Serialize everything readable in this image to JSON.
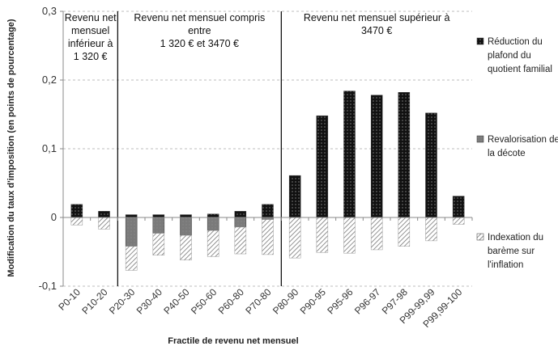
{
  "chart_data": {
    "type": "bar",
    "stacked": true,
    "categories": [
      "P0-10",
      "P10-20",
      "P20-30",
      "P30-40",
      "P40-50",
      "P50-60",
      "P60-80",
      "P70-80",
      "P80-90",
      "P90-95",
      "P95-96",
      "P96-97",
      "P97-98",
      "P99-99,99",
      "P99,99-100"
    ],
    "series": [
      {
        "name": "Réduction du plafond du quotient familial",
        "values": [
          0.019,
          0.009,
          0.004,
          0.004,
          0.004,
          0.005,
          0.009,
          0.019,
          0.061,
          0.148,
          0.184,
          0.178,
          0.182,
          0.152,
          0.031
        ],
        "color": "#111111",
        "pattern": "dots"
      },
      {
        "name": "Revalorisation de la décote",
        "values": [
          0,
          0,
          -0.042,
          -0.023,
          -0.026,
          -0.019,
          -0.014,
          -0.003,
          0,
          0,
          0,
          0,
          0,
          0,
          0
        ],
        "color": "#7a7a7a",
        "pattern": "solid"
      },
      {
        "name": "Indexation du barème sur l'inflation",
        "values": [
          -0.011,
          -0.017,
          -0.035,
          -0.032,
          -0.036,
          -0.038,
          -0.039,
          -0.051,
          -0.059,
          -0.051,
          -0.052,
          -0.047,
          -0.042,
          -0.034,
          -0.01
        ],
        "color": "#ffffff",
        "pattern": "hatch"
      }
    ],
    "ylim": [
      -0.1,
      0.3
    ],
    "yticks": [
      "-0,1",
      "0",
      "0,1",
      "0,2",
      "0,3"
    ],
    "ytick_values": [
      -0.1,
      0,
      0.1,
      0.2,
      0.3
    ],
    "ylabel": "Modification du taux d'imposition (en points de pourcentage)",
    "xlabel": "Fractile de revenu net mensuel",
    "grid": "horizontal dashed",
    "legend_position": "right",
    "separators_after_category": [
      1,
      7
    ],
    "region_labels": [
      {
        "id": "low",
        "lines": [
          "Revenu net",
          "mensuel",
          "inférieur à",
          "1 320 €"
        ]
      },
      {
        "id": "mid",
        "lines": [
          "Revenu net mensuel compris",
          "entre",
          "1 320 € et 3470 €"
        ]
      },
      {
        "id": "high",
        "lines": [
          "Revenu net mensuel supérieur à",
          "3470 €"
        ]
      }
    ],
    "legend_lines": [
      [
        "Réduction du",
        "plafond du",
        "quotient familial"
      ],
      [
        "Revalorisation de",
        "la décote"
      ],
      [
        "Indexation du",
        "barème sur",
        "l'inflation"
      ]
    ]
  }
}
